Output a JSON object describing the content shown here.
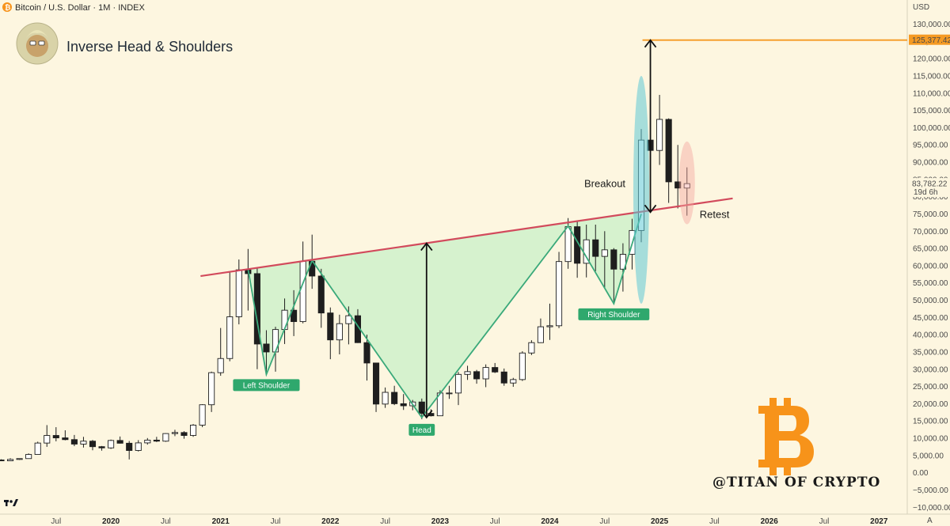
{
  "header": {
    "symbol_title": "Bitcoin / U.S. Dollar · 1M · INDEX",
    "currency": "USD",
    "a_button": "A",
    "tv_logo": "17"
  },
  "colors": {
    "up_candle_fill": "#ffffff",
    "down_candle_fill": "#1e1e1e",
    "neckline": "#d24a5c",
    "pattern_line": "#3aa97a",
    "pattern_fill": "#c8f0c8",
    "target_line": "#f59a23",
    "breakout_ellipse": "#5fc8d6",
    "retest_ellipse": "#f4a6a0",
    "badge": "#2fa86d",
    "btc_logo": "#f7931a"
  },
  "chart_data": {
    "type": "candlestick",
    "title": "Inverse Head & Shoulders",
    "ylabel": "USD",
    "ylim": [
      -12000,
      137000
    ],
    "y_ticks": [
      "130,000.00",
      "125,000.00",
      "120,000.00",
      "115,000.00",
      "110,000.00",
      "105,000.00",
      "100,000.00",
      "95,000.00",
      "90,000.00",
      "85,000.00",
      "80,000.00",
      "75,000.00",
      "70,000.00",
      "65,000.00",
      "60,000.00",
      "55,000.00",
      "50,000.00",
      "45,000.00",
      "40,000.00",
      "35,000.00",
      "30,000.00",
      "25,000.00",
      "20,000.00",
      "15,000.00",
      "10,000.00",
      "5,000.00",
      "0.00",
      "−5,000.00",
      "−10,000.00"
    ],
    "x_ticks": [
      {
        "label": "Jul",
        "date": "2019-07",
        "year": false
      },
      {
        "label": "2020",
        "date": "2020-01",
        "year": true
      },
      {
        "label": "Jul",
        "date": "2020-07",
        "year": false
      },
      {
        "label": "2021",
        "date": "2021-01",
        "year": true
      },
      {
        "label": "Jul",
        "date": "2021-07",
        "year": false
      },
      {
        "label": "2022",
        "date": "2022-01",
        "year": true
      },
      {
        "label": "Jul",
        "date": "2022-07",
        "year": false
      },
      {
        "label": "2023",
        "date": "2023-01",
        "year": true
      },
      {
        "label": "Jul",
        "date": "2023-07",
        "year": false
      },
      {
        "label": "2024",
        "date": "2024-01",
        "year": true
      },
      {
        "label": "Jul",
        "date": "2024-07",
        "year": false
      },
      {
        "label": "2025",
        "date": "2025-01",
        "year": true
      },
      {
        "label": "Jul",
        "date": "2025-07",
        "year": false
      },
      {
        "label": "2026",
        "date": "2026-01",
        "year": true
      },
      {
        "label": "Jul",
        "date": "2026-07",
        "year": false
      },
      {
        "label": "2027",
        "date": "2027-01",
        "year": true
      }
    ],
    "candles": [
      {
        "date": "2019-01",
        "o": 3700,
        "h": 3900,
        "l": 3400,
        "c": 3450
      },
      {
        "date": "2019-02",
        "o": 3450,
        "h": 4200,
        "l": 3400,
        "c": 3850
      },
      {
        "date": "2019-03",
        "o": 3850,
        "h": 4150,
        "l": 3700,
        "c": 4100
      },
      {
        "date": "2019-04",
        "o": 4100,
        "h": 5600,
        "l": 4050,
        "c": 5300
      },
      {
        "date": "2019-05",
        "o": 5300,
        "h": 9000,
        "l": 5300,
        "c": 8600
      },
      {
        "date": "2019-06",
        "o": 8600,
        "h": 13800,
        "l": 7500,
        "c": 10800
      },
      {
        "date": "2019-07",
        "o": 10800,
        "h": 13200,
        "l": 9100,
        "c": 10100
      },
      {
        "date": "2019-08",
        "o": 10100,
        "h": 12300,
        "l": 9400,
        "c": 9600
      },
      {
        "date": "2019-09",
        "o": 9600,
        "h": 10950,
        "l": 7700,
        "c": 8300
      },
      {
        "date": "2019-10",
        "o": 8300,
        "h": 10400,
        "l": 7300,
        "c": 9150
      },
      {
        "date": "2019-11",
        "o": 9150,
        "h": 9500,
        "l": 6500,
        "c": 7550
      },
      {
        "date": "2019-12",
        "o": 7550,
        "h": 7750,
        "l": 6400,
        "c": 7200
      },
      {
        "date": "2020-01",
        "o": 7200,
        "h": 9600,
        "l": 6900,
        "c": 9350
      },
      {
        "date": "2020-02",
        "o": 9350,
        "h": 10500,
        "l": 8450,
        "c": 8550
      },
      {
        "date": "2020-03",
        "o": 8550,
        "h": 9200,
        "l": 3850,
        "c": 6450
      },
      {
        "date": "2020-04",
        "o": 6450,
        "h": 9450,
        "l": 6150,
        "c": 8650
      },
      {
        "date": "2020-05",
        "o": 8650,
        "h": 10050,
        "l": 8150,
        "c": 9450
      },
      {
        "date": "2020-06",
        "o": 9450,
        "h": 10400,
        "l": 8900,
        "c": 9150
      },
      {
        "date": "2020-07",
        "o": 9150,
        "h": 11450,
        "l": 8950,
        "c": 11350
      },
      {
        "date": "2020-08",
        "o": 11350,
        "h": 12450,
        "l": 10600,
        "c": 11650
      },
      {
        "date": "2020-09",
        "o": 11650,
        "h": 12050,
        "l": 9850,
        "c": 10800
      },
      {
        "date": "2020-10",
        "o": 10800,
        "h": 14100,
        "l": 10400,
        "c": 13800
      },
      {
        "date": "2020-11",
        "o": 13800,
        "h": 19850,
        "l": 13200,
        "c": 19700
      },
      {
        "date": "2020-12",
        "o": 19700,
        "h": 29300,
        "l": 17600,
        "c": 29000
      },
      {
        "date": "2021-01",
        "o": 29000,
        "h": 41950,
        "l": 28100,
        "c": 33100
      },
      {
        "date": "2021-02",
        "o": 33100,
        "h": 58350,
        "l": 32300,
        "c": 45200
      },
      {
        "date": "2021-03",
        "o": 45200,
        "h": 61800,
        "l": 43000,
        "c": 58800
      },
      {
        "date": "2021-04",
        "o": 58800,
        "h": 64850,
        "l": 47000,
        "c": 57700
      },
      {
        "date": "2021-05",
        "o": 57700,
        "h": 59500,
        "l": 30000,
        "c": 37300
      },
      {
        "date": "2021-06",
        "o": 37300,
        "h": 41300,
        "l": 28800,
        "c": 35000
      },
      {
        "date": "2021-07",
        "o": 35000,
        "h": 42300,
        "l": 29300,
        "c": 41500
      },
      {
        "date": "2021-08",
        "o": 41500,
        "h": 50500,
        "l": 37300,
        "c": 47100
      },
      {
        "date": "2021-09",
        "o": 47100,
        "h": 52900,
        "l": 39600,
        "c": 43800
      },
      {
        "date": "2021-10",
        "o": 43800,
        "h": 67000,
        "l": 43300,
        "c": 61300
      },
      {
        "date": "2021-11",
        "o": 61300,
        "h": 69000,
        "l": 53300,
        "c": 57000
      },
      {
        "date": "2021-12",
        "o": 57000,
        "h": 59100,
        "l": 42000,
        "c": 46300
      },
      {
        "date": "2022-01",
        "o": 46300,
        "h": 47900,
        "l": 32900,
        "c": 38500
      },
      {
        "date": "2022-02",
        "o": 38500,
        "h": 45800,
        "l": 34300,
        "c": 43200
      },
      {
        "date": "2022-03",
        "o": 43200,
        "h": 48200,
        "l": 37200,
        "c": 45500
      },
      {
        "date": "2022-04",
        "o": 45500,
        "h": 47400,
        "l": 37600,
        "c": 37700
      },
      {
        "date": "2022-05",
        "o": 37700,
        "h": 40000,
        "l": 26700,
        "c": 31800
      },
      {
        "date": "2022-06",
        "o": 31800,
        "h": 31900,
        "l": 17600,
        "c": 19900
      },
      {
        "date": "2022-07",
        "o": 19900,
        "h": 24700,
        "l": 18800,
        "c": 23300
      },
      {
        "date": "2022-08",
        "o": 23300,
        "h": 25200,
        "l": 19600,
        "c": 20000
      },
      {
        "date": "2022-09",
        "o": 20000,
        "h": 22800,
        "l": 18200,
        "c": 19400
      },
      {
        "date": "2022-10",
        "o": 19400,
        "h": 21100,
        "l": 18100,
        "c": 20500
      },
      {
        "date": "2022-11",
        "o": 20500,
        "h": 21500,
        "l": 15500,
        "c": 17200
      },
      {
        "date": "2022-12",
        "o": 17200,
        "h": 18400,
        "l": 16300,
        "c": 16500
      },
      {
        "date": "2023-01",
        "o": 16500,
        "h": 23900,
        "l": 16500,
        "c": 23100
      },
      {
        "date": "2023-02",
        "o": 23100,
        "h": 25200,
        "l": 21400,
        "c": 23100
      },
      {
        "date": "2023-03",
        "o": 23100,
        "h": 29200,
        "l": 19600,
        "c": 28500
      },
      {
        "date": "2023-04",
        "o": 28500,
        "h": 31000,
        "l": 26900,
        "c": 29300
      },
      {
        "date": "2023-05",
        "o": 29300,
        "h": 29800,
        "l": 25800,
        "c": 27200
      },
      {
        "date": "2023-06",
        "o": 27200,
        "h": 31400,
        "l": 24800,
        "c": 30500
      },
      {
        "date": "2023-07",
        "o": 30500,
        "h": 31800,
        "l": 28900,
        "c": 29200
      },
      {
        "date": "2023-08",
        "o": 29200,
        "h": 30200,
        "l": 25200,
        "c": 26000
      },
      {
        "date": "2023-09",
        "o": 26000,
        "h": 27500,
        "l": 24900,
        "c": 27000
      },
      {
        "date": "2023-10",
        "o": 27000,
        "h": 35200,
        "l": 26600,
        "c": 34700
      },
      {
        "date": "2023-11",
        "o": 34700,
        "h": 38400,
        "l": 34100,
        "c": 37700
      },
      {
        "date": "2023-12",
        "o": 37700,
        "h": 44700,
        "l": 37600,
        "c": 42300
      },
      {
        "date": "2024-01",
        "o": 42300,
        "h": 49000,
        "l": 38500,
        "c": 42600
      },
      {
        "date": "2024-02",
        "o": 42600,
        "h": 64000,
        "l": 41900,
        "c": 61200
      },
      {
        "date": "2024-03",
        "o": 61200,
        "h": 73800,
        "l": 59100,
        "c": 71300
      },
      {
        "date": "2024-04",
        "o": 71300,
        "h": 72800,
        "l": 56500,
        "c": 60700
      },
      {
        "date": "2024-05",
        "o": 60700,
        "h": 71900,
        "l": 56600,
        "c": 67500
      },
      {
        "date": "2024-06",
        "o": 67500,
        "h": 71900,
        "l": 58400,
        "c": 62700
      },
      {
        "date": "2024-07",
        "o": 62700,
        "h": 70000,
        "l": 53500,
        "c": 64600
      },
      {
        "date": "2024-08",
        "o": 64600,
        "h": 65100,
        "l": 49000,
        "c": 59000
      },
      {
        "date": "2024-09",
        "o": 59000,
        "h": 66500,
        "l": 52500,
        "c": 63300
      },
      {
        "date": "2024-10",
        "o": 63300,
        "h": 73600,
        "l": 58900,
        "c": 70200
      },
      {
        "date": "2024-11",
        "o": 70200,
        "h": 99600,
        "l": 66800,
        "c": 96400
      },
      {
        "date": "2024-12",
        "o": 96400,
        "h": 108300,
        "l": 90500,
        "c": 93400
      },
      {
        "date": "2025-01",
        "o": 93400,
        "h": 109500,
        "l": 89200,
        "c": 102400
      },
      {
        "date": "2025-02",
        "o": 102400,
        "h": 102700,
        "l": 78200,
        "c": 84300
      },
      {
        "date": "2025-03",
        "o": 84300,
        "h": 95000,
        "l": 76600,
        "c": 82500
      },
      {
        "date": "2025-04",
        "o": 82500,
        "h": 88500,
        "l": 74500,
        "c": 83782
      }
    ],
    "current_price": {
      "value": 83782.22,
      "label": "83,782.22",
      "countdown": "19d 6h"
    },
    "target": {
      "value": 125377.42,
      "label": "125,377.42"
    },
    "neckline": {
      "start": {
        "date": "2021-04",
        "price": 59000
      },
      "end": {
        "date": "2025-09",
        "price": 79500
      }
    },
    "pattern_path": [
      {
        "date": "2021-04",
        "price": 59000
      },
      {
        "date": "2021-06",
        "price": 28500
      },
      {
        "date": "2021-11",
        "price": 61500
      },
      {
        "date": "2022-11",
        "price": 16000
      },
      {
        "date": "2024-03",
        "price": 71500
      },
      {
        "date": "2024-08",
        "price": 49000
      },
      {
        "date": "2024-11",
        "price": 75000
      }
    ],
    "annotations": {
      "left_shoulder": {
        "text": "Left Shoulder",
        "date": "2021-06",
        "price": 28500
      },
      "head": {
        "text": "Head",
        "date": "2022-11",
        "price": 16000
      },
      "right_shoulder": {
        "text": "Right Shoulder",
        "date": "2024-08",
        "price": 49000
      },
      "breakout": {
        "text": "Breakout",
        "date": "2024-11",
        "price": 75000
      },
      "retest": {
        "text": "Retest",
        "date": "2025-04",
        "price": 77000
      }
    },
    "head_arrow": {
      "date": "2022-11",
      "from": 16000,
      "to": 66500
    },
    "target_arrow": {
      "date": "2024-12",
      "from": 75500,
      "to": 125377.42
    },
    "watermark": "@TITAN OF CRYPTO"
  }
}
